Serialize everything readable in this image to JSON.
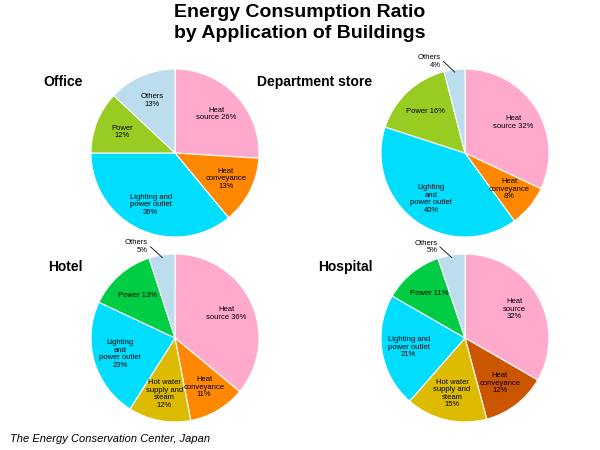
{
  "title": "Energy Consumption Ratio",
  "subtitle": "by Application of Buildings",
  "annotations": [
    "The Energy Conservation Center, Japan"
  ],
  "chart_data": [
    {
      "type": "pie",
      "title": "Office",
      "categories": [
        "Heat\nsource 26%",
        "Heat\nconveyance\n13%",
        "Lighting and\npower outlet\n36%",
        "Power\n12%",
        "Others\n13%"
      ],
      "values": [
        26,
        13,
        36,
        12,
        13
      ],
      "colors": [
        "#ffaacc",
        "#ff8800",
        "#00ddff",
        "#99cc22",
        "#bbddee"
      ]
    },
    {
      "type": "pie",
      "title": "Department store",
      "categories": [
        "Heat\nsource 32%",
        "Heat\nconveyance\n8%",
        "Lighting\nand\npower outlet\n40%",
        "Power 16%",
        "Others\n4%"
      ],
      "values": [
        32,
        8,
        40,
        16,
        4
      ],
      "colors": [
        "#ffaacc",
        "#ff8800",
        "#00ddff",
        "#99cc22",
        "#bbddee"
      ]
    },
    {
      "type": "pie",
      "title": "Hotel",
      "categories": [
        "Heat\nsource 36%",
        "Heat\nconveyance\n11%",
        "Hot water\nsupply and\nsteam\n12%",
        "Lighting\nand\npower outlet\n23%",
        "Power 13%",
        "Others\n5%"
      ],
      "values": [
        36,
        11,
        12,
        23,
        13,
        5
      ],
      "colors": [
        "#ffaacc",
        "#ff8800",
        "#ddbb00",
        "#00ddff",
        "#00cc44",
        "#bbddee"
      ]
    },
    {
      "type": "pie",
      "title": "Hospital",
      "categories": [
        "Heat\nsource\n32%",
        "Heat\nconveyance\n12%",
        "Hot water\nsupply and\nsteam\n15%",
        "Lighting and\npower outlet\n21%",
        "Power 11%",
        "Others\n5%"
      ],
      "values": [
        32,
        12,
        15,
        21,
        11,
        5
      ],
      "colors": [
        "#ffaacc",
        "#cc5500",
        "#ddbb00",
        "#00ddff",
        "#00cc44",
        "#bbddee"
      ]
    }
  ]
}
